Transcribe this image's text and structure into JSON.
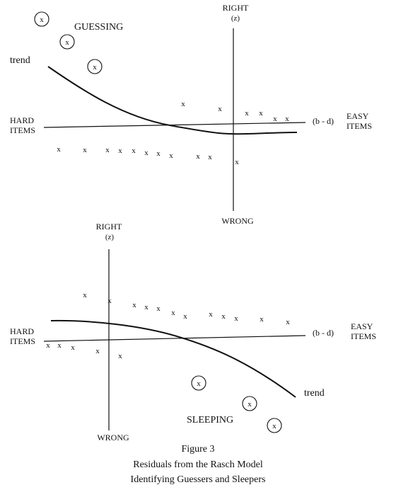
{
  "top_panel": {
    "axis_top": "RIGHT",
    "axis_top_sub": "(z)",
    "axis_bottom": "WRONG",
    "left_label": [
      "HARD",
      "ITEMS"
    ],
    "right_label": [
      "EASY",
      "ITEMS"
    ],
    "x_axis_label": "(b - d)",
    "trend_label": "trend",
    "group_label": "GUESSING",
    "marker": "x"
  },
  "bottom_panel": {
    "axis_top": "RIGHT",
    "axis_top_sub": "(z)",
    "axis_bottom": "WRONG",
    "left_label": [
      "HARD",
      "ITEMS"
    ],
    "right_label": [
      "EASY",
      "ITEMS"
    ],
    "x_axis_label": "(b - d)",
    "trend_label": "trend",
    "group_label": "SLEEPING",
    "marker": "x"
  },
  "caption": {
    "line1": "Figure 3",
    "line2": "Residuals from the Rasch Model",
    "line3": "Identifying Guessers and Sleepers"
  }
}
